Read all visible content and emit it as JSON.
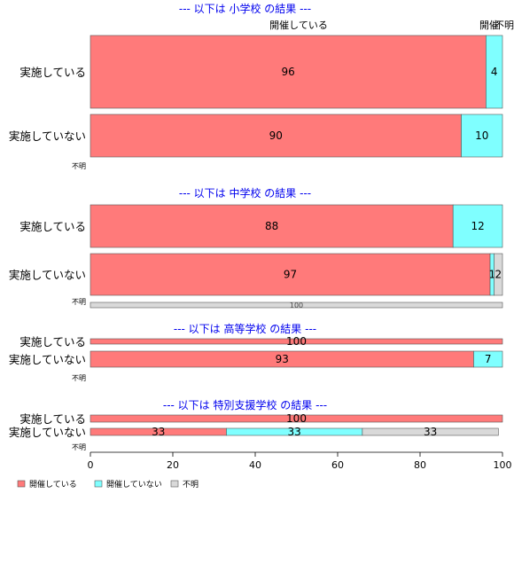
{
  "chart_data": {
    "type": "bar",
    "orientation": "horizontal",
    "stacked": true,
    "xlim": [
      0,
      100
    ],
    "xticks": [
      "0",
      "20",
      "40",
      "60",
      "80",
      "100"
    ],
    "series_names": [
      "開催している",
      "開催していない",
      "不明"
    ],
    "top_labels": [
      "開催している",
      "開催",
      "不明"
    ],
    "colors": [
      "#ff7a7a",
      "#7fffff",
      "#d9d9d9"
    ],
    "legend": [
      "開催している",
      "開催していない",
      "不明"
    ],
    "legend_position": "bottom-left",
    "panels": [
      {
        "title": "--- 以下は 小学校 の結果 ---",
        "categories": [
          "実施している",
          "実施していない",
          "不明"
        ],
        "rows": [
          {
            "values": [
              96,
              4,
              0
            ],
            "labels": [
              "96",
              "4",
              ""
            ]
          },
          {
            "values": [
              90,
              10,
              0
            ],
            "labels": [
              "90",
              "10",
              ""
            ]
          },
          {
            "values": [
              0,
              0,
              0
            ],
            "labels": [
              "",
              "",
              ""
            ]
          }
        ]
      },
      {
        "title": "--- 以下は 中学校 の結果 ---",
        "categories": [
          "実施している",
          "実施していない",
          "不明"
        ],
        "rows": [
          {
            "values": [
              88,
              12,
              0
            ],
            "labels": [
              "88",
              "12",
              ""
            ]
          },
          {
            "values": [
              97,
              1,
              2
            ],
            "labels": [
              "97",
              "1",
              "2"
            ]
          },
          {
            "values": [
              0,
              0,
              100
            ],
            "labels": [
              "",
              "",
              "100"
            ]
          }
        ]
      },
      {
        "title": "--- 以下は 高等学校 の結果 ---",
        "categories": [
          "実施している",
          "実施していない",
          "不明"
        ],
        "rows": [
          {
            "values": [
              100,
              0,
              0
            ],
            "labels": [
              "100",
              "",
              ""
            ]
          },
          {
            "values": [
              93,
              7,
              0
            ],
            "labels": [
              "93",
              "7",
              ""
            ]
          },
          {
            "values": [
              0,
              0,
              0
            ],
            "labels": [
              "",
              "",
              ""
            ]
          }
        ]
      },
      {
        "title": "--- 以下は 特別支援学校 の結果 ---",
        "categories": [
          "実施している",
          "実施していない",
          "不明"
        ],
        "rows": [
          {
            "values": [
              100,
              0,
              0
            ],
            "labels": [
              "100",
              "",
              ""
            ]
          },
          {
            "values": [
              33,
              33,
              33
            ],
            "labels": [
              "33",
              "33",
              "33"
            ]
          },
          {
            "values": [
              0,
              0,
              0
            ],
            "labels": [
              "",
              "",
              ""
            ]
          }
        ]
      }
    ]
  }
}
